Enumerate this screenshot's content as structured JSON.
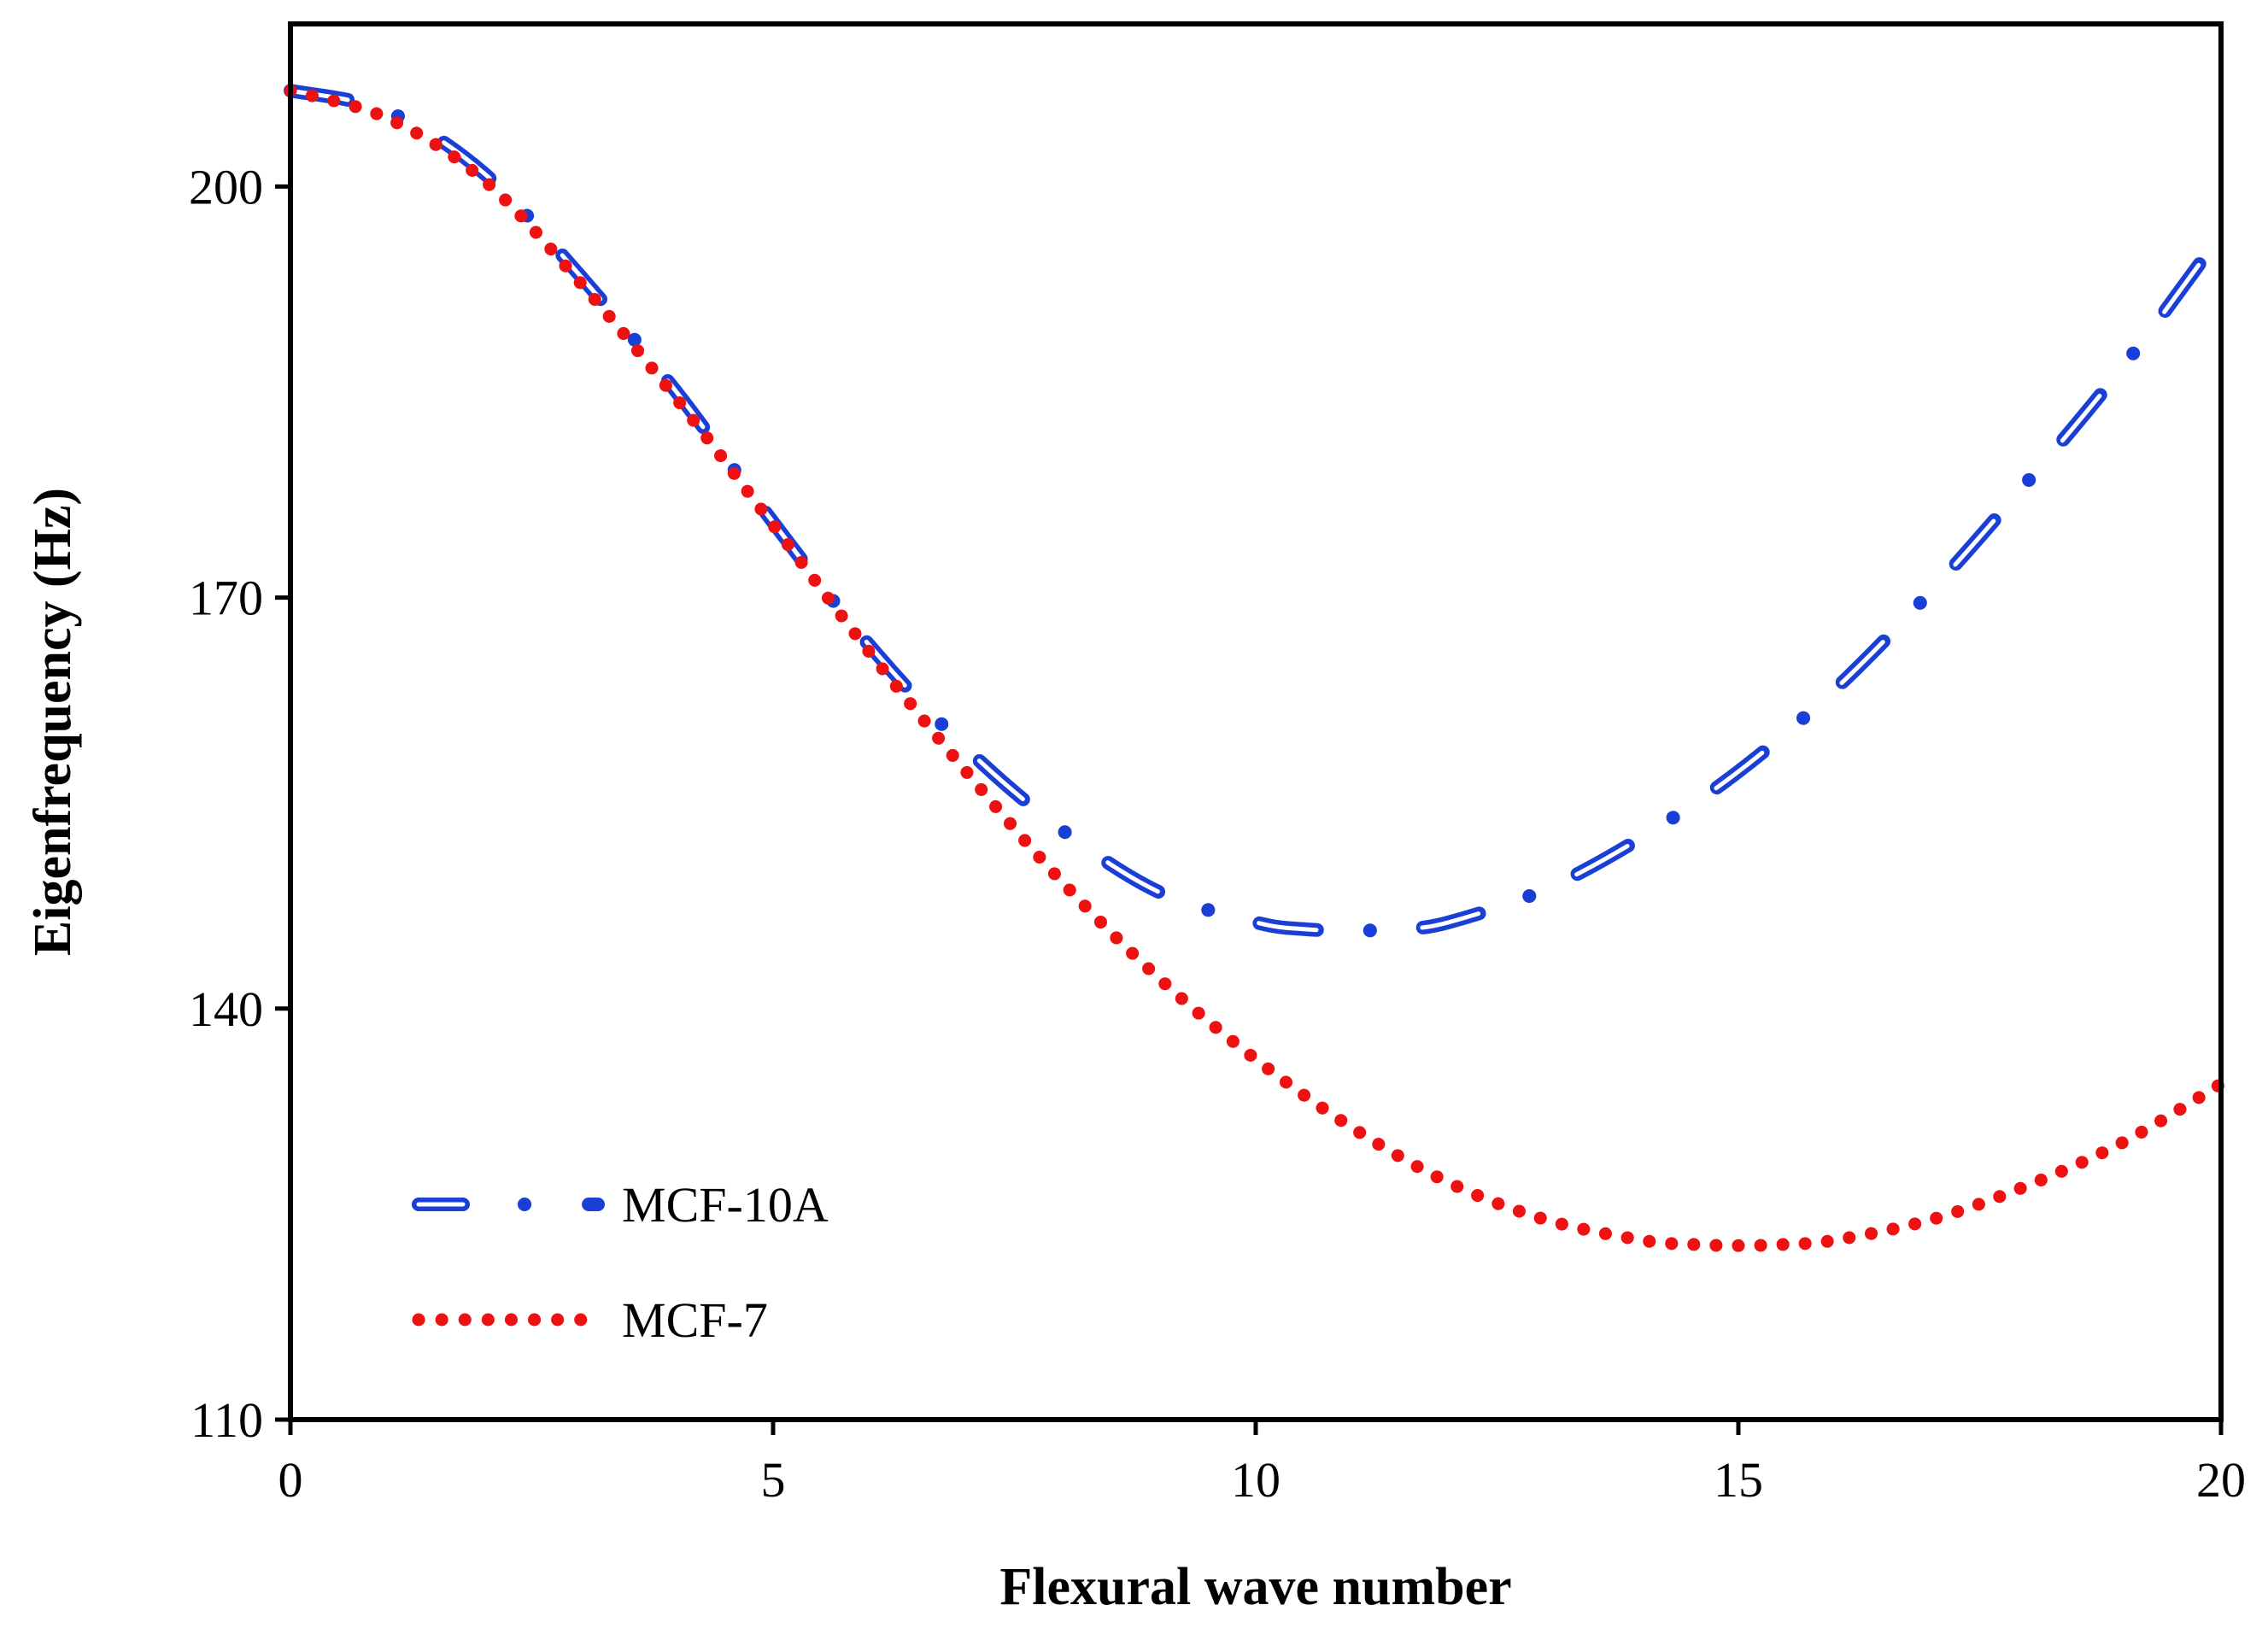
{
  "chart_data": {
    "type": "line",
    "title": "",
    "xlabel": "Flexural wave number",
    "ylabel": "Eigenfrequency (Hz)",
    "xlim": [
      0,
      20
    ],
    "ylim": [
      110,
      210
    ],
    "xticks": [
      0,
      5,
      10,
      15,
      20
    ],
    "xtick_labels": [
      "0",
      "5",
      "10",
      "15",
      "20"
    ],
    "yticks": [
      110,
      140,
      170,
      200
    ],
    "ytick_labels": [
      "110",
      "140",
      "170",
      "200"
    ],
    "grid": false,
    "legend_position": "bottom-left",
    "series": [
      {
        "name": "MCF-10A",
        "color": "#1a3fd6",
        "style": "dash-dot",
        "x": [
          0,
          1,
          2,
          3,
          4,
          5,
          6,
          7,
          8,
          9,
          10,
          10.5,
          11,
          11.5,
          12,
          13,
          14,
          15,
          16,
          17,
          18,
          19,
          20
        ],
        "y": [
          207,
          205.5,
          201,
          193.5,
          185,
          175.5,
          166.5,
          159,
          153,
          148.5,
          146.3,
          145.8,
          145.7,
          145.8,
          146.3,
          148.7,
          152.5,
          157.3,
          163.3,
          170.5,
          178.5,
          187,
          196.5
        ]
      },
      {
        "name": "MCF-7",
        "color": "#ee1111",
        "style": "dotted",
        "x": [
          0,
          1,
          2,
          3,
          4,
          5,
          6,
          7,
          8,
          9,
          10,
          11,
          12,
          13,
          14,
          14.5,
          15,
          15.5,
          16,
          17,
          18,
          19,
          20
        ],
        "y": [
          207,
          205,
          200.5,
          193,
          184.5,
          175.3,
          166,
          157.3,
          149.2,
          142.2,
          136.3,
          131.3,
          127.3,
          124.6,
          123.1,
          122.8,
          122.7,
          122.8,
          123.1,
          124.6,
          127.1,
          130.3,
          134.5
        ]
      }
    ]
  }
}
